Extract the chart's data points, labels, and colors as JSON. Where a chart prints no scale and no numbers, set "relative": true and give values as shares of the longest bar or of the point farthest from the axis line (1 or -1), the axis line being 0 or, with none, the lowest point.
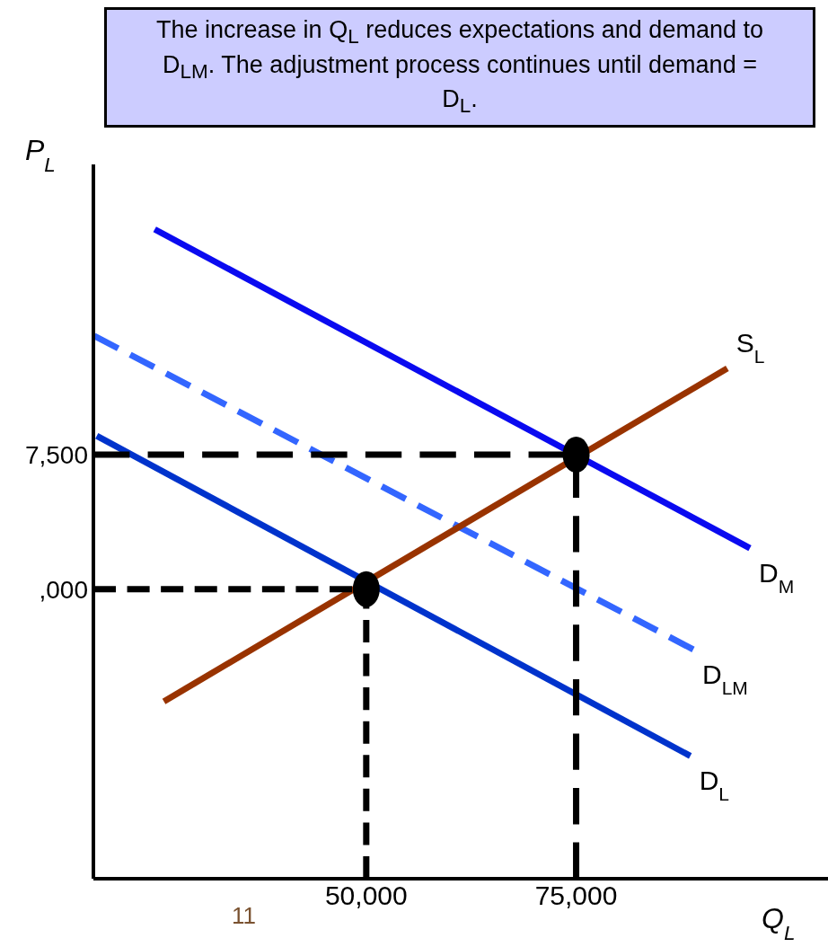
{
  "chart_data": {
    "type": "line",
    "relative": true,
    "title": "The increase in Q$_{L}$ reduces expectations and demand to D$_{LM}$. The adjustment process continues until demand = D$_{L}$.",
    "xlabel": "Q$_{L}$",
    "ylabel": "P$_{L}$",
    "xlim": [
      17500,
      105000
    ],
    "xticks": [
      {
        "value": 50000,
        "label": "50,000"
      },
      {
        "value": 75000,
        "label": "75,000"
      }
    ],
    "grid": false,
    "legend": false,
    "marker": "none",
    "annotations": [
      "11",
      "7,500",
      ",000"
    ],
    "series": [
      {
        "name": "D$_{M}$",
        "color": "#0a0af0",
        "x": [
          24800,
          95700
        ],
        "values": [
          1,
          0.509
        ]
      },
      {
        "name": "D$_{LM}$",
        "color": "#3366ff",
        "line_style": "dashed",
        "x": [
          17600,
          88950
        ],
        "values": [
          0.836,
          0.353
        ]
      },
      {
        "name": "D$_{L}$",
        "color": "#0033cc",
        "x": [
          17900,
          88600
        ],
        "values": [
          0.682,
          0.189
        ]
      },
      {
        "name": "S$_{L}$",
        "color": "#993300",
        "x": [
          25900,
          93000
        ],
        "values": [
          0.273,
          0.786
        ]
      },
      {
        "color": "#000000",
        "line_style": "dashed",
        "x": [
          17500,
          75000,
          75000
        ],
        "values": [
          0.653,
          0.653,
          0
        ]
      },
      {
        "color": "#000000",
        "line_style": "dashed",
        "x": [
          17500,
          50000,
          50000
        ],
        "values": [
          0.446,
          0.446,
          0
        ]
      },
      {
        "type": "scatter",
        "marker": "circle",
        "color": "#000000",
        "x": [
          50000,
          75000
        ],
        "values": [
          0.446,
          0.653
        ]
      }
    ]
  }
}
